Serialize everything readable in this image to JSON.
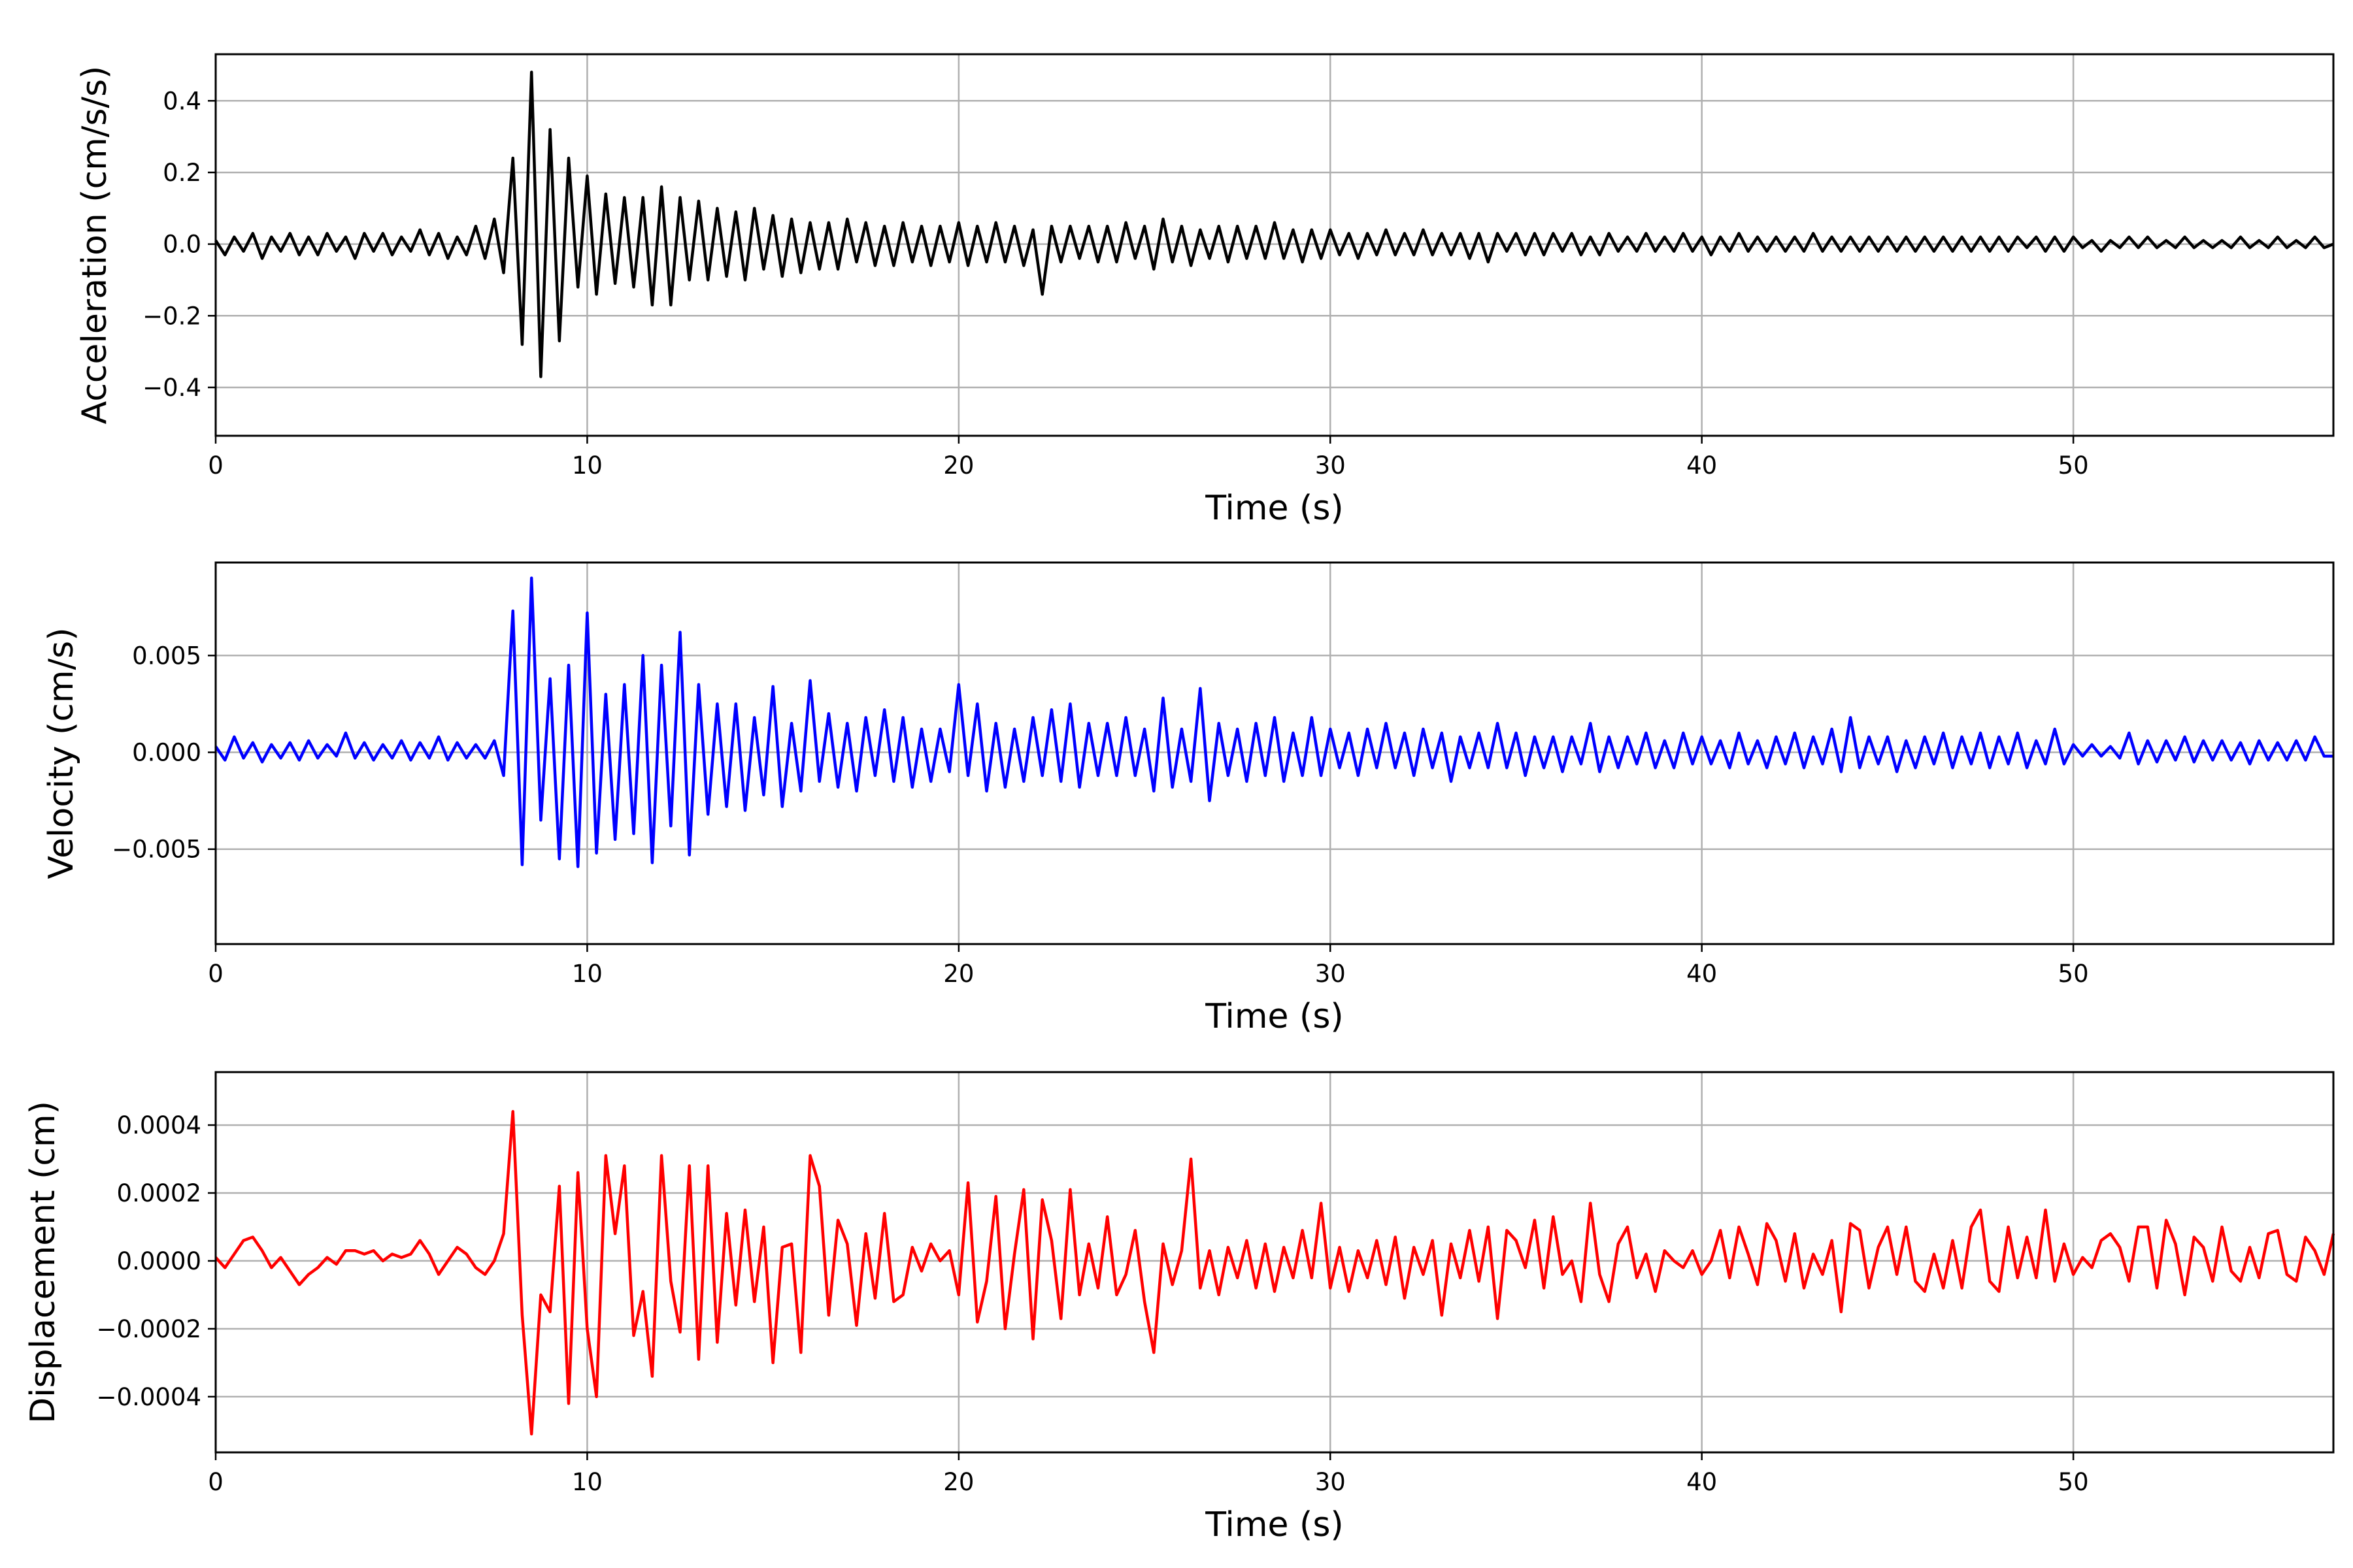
{
  "chart_data": [
    {
      "type": "line",
      "title": "",
      "xlabel": "Time (s)",
      "ylabel": "Acceleration (cm/s/s)",
      "xlim": [
        0,
        57
      ],
      "ylim": [
        -0.535,
        0.53
      ],
      "grid": true,
      "color": "#000000",
      "x_start": 0,
      "x_step": 0.25,
      "xticks": [
        0,
        10,
        20,
        30,
        40,
        50
      ],
      "xtick_labels": [
        "0",
        "10",
        "20",
        "30",
        "40",
        "50"
      ],
      "yticks": [
        -0.4,
        -0.2,
        0.0,
        0.2,
        0.4
      ],
      "ytick_labels": [
        "−0.4",
        "−0.2",
        "0.0",
        "0.2",
        "0.4"
      ],
      "values": [
        0.01,
        -0.03,
        0.02,
        -0.02,
        0.03,
        -0.04,
        0.02,
        -0.02,
        0.03,
        -0.03,
        0.02,
        -0.03,
        0.03,
        -0.02,
        0.02,
        -0.04,
        0.03,
        -0.02,
        0.03,
        -0.03,
        0.02,
        -0.02,
        0.04,
        -0.03,
        0.03,
        -0.04,
        0.02,
        -0.03,
        0.05,
        -0.04,
        0.07,
        -0.08,
        0.24,
        -0.28,
        0.48,
        -0.37,
        0.32,
        -0.27,
        0.24,
        -0.12,
        0.19,
        -0.14,
        0.14,
        -0.11,
        0.13,
        -0.12,
        0.13,
        -0.17,
        0.16,
        -0.17,
        0.13,
        -0.1,
        0.12,
        -0.1,
        0.1,
        -0.09,
        0.09,
        -0.1,
        0.1,
        -0.07,
        0.08,
        -0.09,
        0.07,
        -0.08,
        0.06,
        -0.07,
        0.06,
        -0.07,
        0.07,
        -0.05,
        0.06,
        -0.06,
        0.05,
        -0.06,
        0.06,
        -0.05,
        0.05,
        -0.06,
        0.05,
        -0.05,
        0.06,
        -0.06,
        0.05,
        -0.05,
        0.06,
        -0.05,
        0.05,
        -0.06,
        0.04,
        -0.14,
        0.05,
        -0.05,
        0.05,
        -0.04,
        0.05,
        -0.05,
        0.05,
        -0.05,
        0.06,
        -0.04,
        0.05,
        -0.07,
        0.07,
        -0.05,
        0.05,
        -0.06,
        0.04,
        -0.04,
        0.05,
        -0.05,
        0.05,
        -0.04,
        0.05,
        -0.04,
        0.06,
        -0.04,
        0.04,
        -0.05,
        0.04,
        -0.04,
        0.04,
        -0.03,
        0.03,
        -0.04,
        0.03,
        -0.03,
        0.04,
        -0.03,
        0.03,
        -0.03,
        0.04,
        -0.03,
        0.03,
        -0.03,
        0.03,
        -0.04,
        0.03,
        -0.05,
        0.03,
        -0.02,
        0.03,
        -0.03,
        0.03,
        -0.03,
        0.03,
        -0.02,
        0.03,
        -0.03,
        0.02,
        -0.03,
        0.03,
        -0.02,
        0.02,
        -0.02,
        0.03,
        -0.02,
        0.02,
        -0.02,
        0.03,
        -0.02,
        0.02,
        -0.03,
        0.02,
        -0.02,
        0.03,
        -0.02,
        0.02,
        -0.02,
        0.02,
        -0.02,
        0.02,
        -0.02,
        0.03,
        -0.02,
        0.02,
        -0.02,
        0.02,
        -0.02,
        0.02,
        -0.02,
        0.02,
        -0.02,
        0.02,
        -0.02,
        0.02,
        -0.02,
        0.02,
        -0.02,
        0.02,
        -0.02,
        0.02,
        -0.02,
        0.02,
        -0.02,
        0.02,
        -0.01,
        0.02,
        -0.02,
        0.02,
        -0.02,
        0.02,
        -0.01,
        0.01,
        -0.02,
        0.01,
        -0.01,
        0.02,
        -0.01,
        0.02,
        -0.01,
        0.01,
        -0.01,
        0.02,
        -0.01,
        0.01,
        -0.01,
        0.01,
        -0.01,
        0.02,
        -0.01,
        0.01,
        -0.01,
        0.02,
        -0.01,
        0.01,
        -0.01,
        0.02,
        -0.01,
        0.0
      ]
    },
    {
      "type": "line",
      "title": "",
      "xlabel": "Time (s)",
      "ylabel": "Velocity (cm/s)",
      "xlim": [
        0,
        57
      ],
      "ylim": [
        -0.0099,
        0.0098
      ],
      "grid": true,
      "color": "#0000ff",
      "x_start": 0,
      "x_step": 0.25,
      "xticks": [
        0,
        10,
        20,
        30,
        40,
        50
      ],
      "xtick_labels": [
        "0",
        "10",
        "20",
        "30",
        "40",
        "50"
      ],
      "yticks": [
        -0.005,
        0.0,
        0.005
      ],
      "ytick_labels": [
        "−0.005",
        "0.000",
        "0.005"
      ],
      "values": [
        0.0003,
        -0.0004,
        0.0008,
        -0.0003,
        0.0005,
        -0.0005,
        0.0004,
        -0.0003,
        0.0005,
        -0.0004,
        0.0006,
        -0.0003,
        0.0004,
        -0.0002,
        0.001,
        -0.0003,
        0.0005,
        -0.0004,
        0.0004,
        -0.0003,
        0.0006,
        -0.0004,
        0.0005,
        -0.0003,
        0.0008,
        -0.0004,
        0.0005,
        -0.0003,
        0.0004,
        -0.0003,
        0.0006,
        -0.0012,
        0.0073,
        -0.0058,
        0.009,
        -0.0035,
        0.0038,
        -0.0055,
        0.0045,
        -0.0059,
        0.0072,
        -0.0052,
        0.003,
        -0.0045,
        0.0035,
        -0.0042,
        0.005,
        -0.0057,
        0.0045,
        -0.0038,
        0.0062,
        -0.0053,
        0.0035,
        -0.0032,
        0.0025,
        -0.0028,
        0.0025,
        -0.003,
        0.0018,
        -0.0022,
        0.0034,
        -0.0028,
        0.0015,
        -0.002,
        0.0037,
        -0.0015,
        0.002,
        -0.0018,
        0.0015,
        -0.002,
        0.0018,
        -0.0012,
        0.0022,
        -0.0015,
        0.0018,
        -0.0018,
        0.0012,
        -0.0015,
        0.0012,
        -0.001,
        0.0035,
        -0.0012,
        0.0025,
        -0.002,
        0.0015,
        -0.0018,
        0.0012,
        -0.0015,
        0.0018,
        -0.0012,
        0.0022,
        -0.0015,
        0.0025,
        -0.0018,
        0.0015,
        -0.0012,
        0.0015,
        -0.0012,
        0.0018,
        -0.0012,
        0.0012,
        -0.002,
        0.0028,
        -0.0018,
        0.0012,
        -0.0015,
        0.0033,
        -0.0025,
        0.0015,
        -0.0012,
        0.0012,
        -0.0015,
        0.0015,
        -0.0012,
        0.0018,
        -0.0015,
        0.001,
        -0.0012,
        0.0018,
        -0.0012,
        0.0012,
        -0.0008,
        0.001,
        -0.0012,
        0.0012,
        -0.0008,
        0.0015,
        -0.0008,
        0.001,
        -0.0012,
        0.0012,
        -0.0008,
        0.001,
        -0.0015,
        0.0008,
        -0.0008,
        0.001,
        -0.0008,
        0.0015,
        -0.0008,
        0.001,
        -0.0012,
        0.0008,
        -0.0008,
        0.0008,
        -0.001,
        0.0008,
        -0.0006,
        0.0015,
        -0.001,
        0.0008,
        -0.0008,
        0.0008,
        -0.0006,
        0.001,
        -0.0008,
        0.0006,
        -0.0008,
        0.001,
        -0.0006,
        0.0008,
        -0.0006,
        0.0006,
        -0.0008,
        0.001,
        -0.0006,
        0.0006,
        -0.0008,
        0.0008,
        -0.0006,
        0.001,
        -0.0008,
        0.0008,
        -0.0006,
        0.0012,
        -0.001,
        0.0018,
        -0.0008,
        0.0008,
        -0.0006,
        0.0008,
        -0.001,
        0.0006,
        -0.0008,
        0.0008,
        -0.0006,
        0.001,
        -0.0008,
        0.0008,
        -0.0006,
        0.001,
        -0.0008,
        0.0008,
        -0.0006,
        0.001,
        -0.0008,
        0.0006,
        -0.0006,
        0.0012,
        -0.0006,
        0.0004,
        -0.0002,
        0.0004,
        -0.0002,
        0.0003,
        -0.0003,
        0.001,
        -0.0006,
        0.0006,
        -0.0005,
        0.0006,
        -0.0004,
        0.0008,
        -0.0005,
        0.0006,
        -0.0004,
        0.0006,
        -0.0004,
        0.0005,
        -0.0006,
        0.0006,
        -0.0004,
        0.0005,
        -0.0004,
        0.0006,
        -0.0004,
        0.0008,
        -0.0002,
        -0.0002
      ]
    },
    {
      "type": "line",
      "title": "",
      "xlabel": "Time (s)",
      "ylabel": "Displacement (cm)",
      "xlim": [
        0,
        57
      ],
      "ylim": [
        -0.000564,
        0.000556
      ],
      "grid": true,
      "color": "#ff0000",
      "x_start": 0,
      "x_step": 0.25,
      "xticks": [
        0,
        10,
        20,
        30,
        40,
        50
      ],
      "xtick_labels": [
        "0",
        "10",
        "20",
        "30",
        "40",
        "50"
      ],
      "yticks": [
        -0.0004,
        -0.0002,
        0.0,
        0.0002,
        0.0004
      ],
      "ytick_labels": [
        "−0.0004",
        "−0.0002",
        "0.0000",
        "0.0002",
        "0.0004"
      ],
      "values": [
        1e-05,
        -2e-05,
        2e-05,
        6e-05,
        7e-05,
        3e-05,
        -2e-05,
        1e-05,
        -3e-05,
        -7e-05,
        -4e-05,
        -2e-05,
        1e-05,
        -1e-05,
        3e-05,
        3e-05,
        2e-05,
        3e-05,
        0.0,
        2e-05,
        1e-05,
        2e-05,
        6e-05,
        2e-05,
        -4e-05,
        0.0,
        4e-05,
        2e-05,
        -2e-05,
        -4e-05,
        0.0,
        8e-05,
        0.00044,
        -0.00016,
        -0.00051,
        -0.0001,
        -0.00015,
        0.00022,
        -0.00042,
        0.00026,
        -0.0002,
        -0.0004,
        0.00031,
        8e-05,
        0.00028,
        -0.00022,
        -9e-05,
        -0.00034,
        0.00031,
        -6e-05,
        -0.00021,
        0.00028,
        -0.00029,
        0.00028,
        -0.00024,
        0.00014,
        -0.00013,
        0.00015,
        -0.00012,
        0.0001,
        -0.0003,
        4e-05,
        5e-05,
        -0.00027,
        0.00031,
        0.00022,
        -0.00016,
        0.00012,
        5e-05,
        -0.00019,
        8e-05,
        -0.00011,
        0.00014,
        -0.00012,
        -0.0001,
        4e-05,
        -3e-05,
        5e-05,
        0.0,
        3e-05,
        -0.0001,
        0.00023,
        -0.00018,
        -6e-05,
        0.00019,
        -0.0002,
        2e-05,
        0.00021,
        -0.00023,
        0.00018,
        6e-05,
        -0.00017,
        0.00021,
        -0.0001,
        5e-05,
        -8e-05,
        0.00013,
        -0.0001,
        -4e-05,
        9e-05,
        -0.00012,
        -0.00027,
        5e-05,
        -7e-05,
        3e-05,
        0.0003,
        -8e-05,
        3e-05,
        -0.0001,
        4e-05,
        -5e-05,
        6e-05,
        -8e-05,
        5e-05,
        -9e-05,
        4e-05,
        -5e-05,
        9e-05,
        -5e-05,
        0.00017,
        -8e-05,
        4e-05,
        -9e-05,
        3e-05,
        -5e-05,
        6e-05,
        -7e-05,
        7e-05,
        -0.00011,
        4e-05,
        -4e-05,
        6e-05,
        -0.00016,
        5e-05,
        -5e-05,
        9e-05,
        -6e-05,
        0.0001,
        -0.00017,
        9e-05,
        6e-05,
        -2e-05,
        0.00012,
        -8e-05,
        0.00013,
        -4e-05,
        0.0,
        -0.00012,
        0.00017,
        -4e-05,
        -0.00012,
        5e-05,
        0.0001,
        -5e-05,
        2e-05,
        -9e-05,
        3e-05,
        0.0,
        -2e-05,
        3e-05,
        -4e-05,
        0.0,
        9e-05,
        -5e-05,
        0.0001,
        2e-05,
        -7e-05,
        0.00011,
        6e-05,
        -6e-05,
        8e-05,
        -8e-05,
        2e-05,
        -4e-05,
        6e-05,
        -0.00015,
        0.00011,
        9e-05,
        -8e-05,
        4e-05,
        0.0001,
        -4e-05,
        0.0001,
        -6e-05,
        -9e-05,
        2e-05,
        -8e-05,
        6e-05,
        -8e-05,
        0.0001,
        0.00015,
        -6e-05,
        -9e-05,
        0.0001,
        -5e-05,
        7e-05,
        -5e-05,
        0.00015,
        -6e-05,
        5e-05,
        -4e-05,
        1e-05,
        -2e-05,
        6e-05,
        8e-05,
        4e-05,
        -6e-05,
        0.0001,
        0.0001,
        -8e-05,
        0.00012,
        5e-05,
        -0.0001,
        7e-05,
        4e-05,
        -6e-05,
        0.0001,
        -3e-05,
        -6e-05,
        4e-05,
        -5e-05,
        8e-05,
        9e-05,
        -4e-05,
        -6e-05,
        7e-05,
        3e-05,
        -4e-05,
        8e-05
      ]
    }
  ]
}
